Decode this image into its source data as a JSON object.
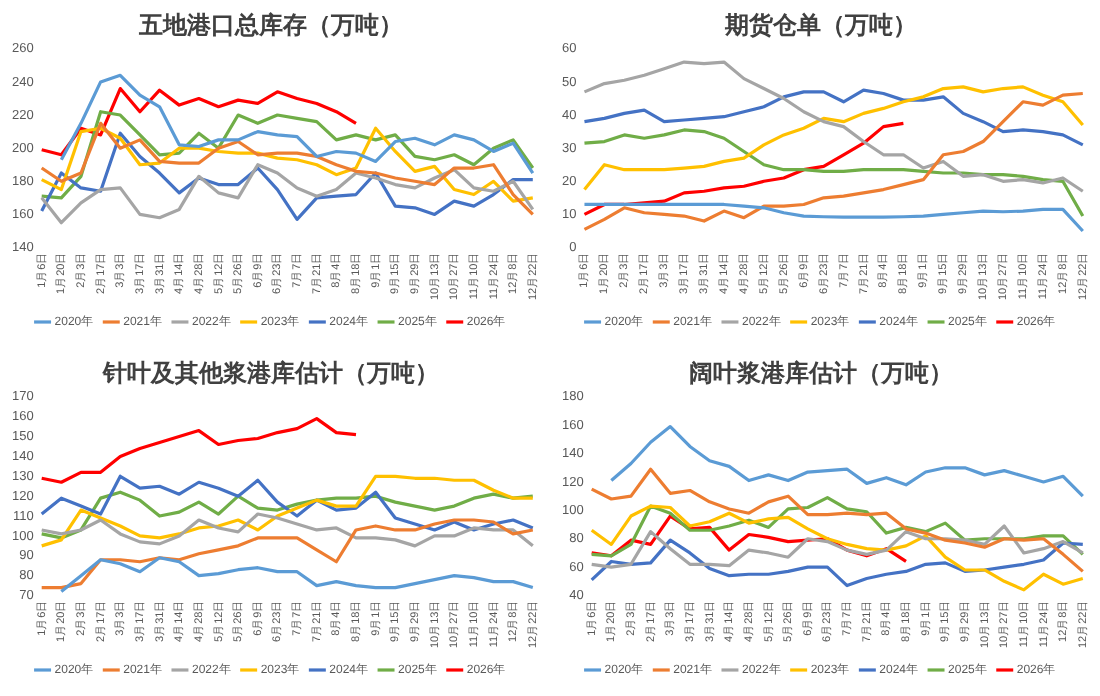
{
  "chart_data": [
    {
      "type": "line",
      "title": "五地港口总库存（万吨）",
      "marker": "none",
      "legend": "bottom",
      "ylim": [
        140,
        260
      ],
      "yticks": [
        140,
        160,
        180,
        200,
        220,
        240,
        260
      ],
      "categories": [
        "1月6日",
        "1月20日",
        "2月3日",
        "2月17日",
        "3月3日",
        "3月17日",
        "3月31日",
        "4月14日",
        "4月28日",
        "5月12日",
        "5月26日",
        "6月9日",
        "6月23日",
        "7月7日",
        "7月21日",
        "8月4日",
        "8月18日",
        "9月1日",
        "9月15日",
        "9月29日",
        "10月13日",
        "10月27日",
        "11月10日",
        "11月24日",
        "12月8日",
        "12月22日"
      ],
      "series": [
        {
          "name": "2020年",
          "color": "#5b9bd5",
          "values": [
            null,
            193,
            215,
            240,
            244,
            232,
            225,
            202,
            201,
            205,
            205,
            210,
            208,
            207,
            195,
            198,
            197,
            192,
            204,
            206,
            202,
            208,
            205,
            198,
            203,
            185
          ]
        },
        {
          "name": "2021年",
          "color": "#ed7d31",
          "values": [
            188,
            180,
            185,
            215,
            200,
            205,
            192,
            191,
            191,
            200,
            204,
            196,
            197,
            197,
            195,
            190,
            186,
            185,
            182,
            180,
            178,
            188,
            188,
            190,
            172,
            160
          ]
        },
        {
          "name": "2022年",
          "color": "#a5a5a5",
          "values": [
            170,
            155,
            167,
            175,
            176,
            160,
            158,
            163,
            183,
            173,
            170,
            190,
            185,
            176,
            171,
            175,
            185,
            182,
            178,
            176,
            182,
            187,
            176,
            174,
            180,
            163
          ]
        },
        {
          "name": "2023年",
          "color": "#ffc000",
          "values": [
            181,
            175,
            210,
            212,
            206,
            190,
            191,
            200,
            200,
            198,
            197,
            197,
            194,
            193,
            190,
            184,
            188,
            212,
            198,
            186,
            189,
            175,
            172,
            180,
            168,
            170
          ]
        },
        {
          "name": "2024年",
          "color": "#4472c4",
          "values": [
            162,
            185,
            176,
            174,
            209,
            195,
            185,
            173,
            182,
            178,
            178,
            188,
            175,
            157,
            170,
            171,
            172,
            185,
            165,
            164,
            160,
            168,
            165,
            172,
            181,
            181
          ]
        },
        {
          "name": "2025年",
          "color": "#70ad47",
          "values": [
            171,
            170,
            183,
            222,
            220,
            208,
            196,
            197,
            209,
            200,
            220,
            215,
            220,
            218,
            216,
            205,
            208,
            205,
            208,
            195,
            193,
            196,
            190,
            200,
            205,
            188
          ]
        },
        {
          "name": "2026年",
          "color": "#ff0000",
          "values": [
            199,
            196,
            212,
            208,
            236,
            222,
            235,
            226,
            230,
            225,
            229,
            227,
            234,
            230,
            227,
            222,
            215,
            null,
            null,
            null,
            null,
            null,
            null,
            null,
            null,
            null
          ]
        }
      ]
    },
    {
      "type": "line",
      "title": "期货仓单（万吨）",
      "marker": "none",
      "legend": "bottom",
      "ylim": [
        0,
        60
      ],
      "yticks": [
        0,
        10,
        20,
        30,
        40,
        50,
        60
      ],
      "categories": [
        "1月6日",
        "1月20日",
        "2月3日",
        "2月17日",
        "3月3日",
        "3月17日",
        "3月31日",
        "4月14日",
        "4月28日",
        "5月12日",
        "5月26日",
        "6月9日",
        "6月23日",
        "7月7日",
        "7月21日",
        "8月4日",
        "8月18日",
        "9月1日",
        "9月15日",
        "9月29日",
        "10月13日",
        "10月27日",
        "11月10日",
        "11月24日",
        "12月8日",
        "12月22日"
      ],
      "series": [
        {
          "name": "2020年",
          "color": "#5b9bd5",
          "values": [
            13,
            13,
            13,
            13,
            13,
            13,
            13,
            13,
            12.5,
            12,
            10.5,
            9.5,
            9.3,
            9.2,
            9.2,
            9.2,
            9.3,
            9.5,
            10,
            10.5,
            11,
            10.8,
            11,
            11.5,
            11.5,
            5
          ]
        },
        {
          "name": "2021年",
          "color": "#ed7d31",
          "values": [
            5.5,
            8.5,
            12,
            10.5,
            10,
            9.5,
            8,
            11,
            9,
            12.5,
            12.5,
            13,
            15,
            15.5,
            16.5,
            17.5,
            19,
            20.5,
            28,
            29,
            32,
            38,
            44,
            43,
            46,
            46.5
          ]
        },
        {
          "name": "2022年",
          "color": "#a5a5a5",
          "values": [
            47,
            49.5,
            50.5,
            52,
            54,
            56,
            55.5,
            56,
            51,
            48,
            45,
            41,
            38,
            36.5,
            32,
            28,
            28,
            24,
            26,
            21.5,
            22,
            20,
            20.5,
            19.5,
            21,
            17
          ]
        },
        {
          "name": "2023年",
          "color": "#ffc000",
          "values": [
            17.5,
            25,
            23.5,
            23.5,
            23.5,
            24,
            24.5,
            26,
            27,
            31,
            34,
            36,
            39,
            38,
            40.5,
            42,
            44,
            45.5,
            48,
            48.5,
            47,
            48,
            48.5,
            46,
            44,
            37
          ]
        },
        {
          "name": "2024年",
          "color": "#4472c4",
          "values": [
            38,
            39,
            40.5,
            41.5,
            38,
            38.5,
            39,
            39.5,
            41,
            42.5,
            45.5,
            47,
            47,
            44,
            47.5,
            46.5,
            44.5,
            44.5,
            45.5,
            40.5,
            38,
            35,
            35.5,
            35,
            34,
            31
          ]
        },
        {
          "name": "2025年",
          "color": "#70ad47",
          "values": [
            31.5,
            32,
            34,
            33,
            34,
            35.5,
            35,
            33,
            29,
            25,
            23.5,
            23.5,
            23,
            23,
            23.5,
            23.5,
            23.5,
            23,
            22.5,
            22.5,
            22,
            22,
            21.5,
            20.5,
            20,
            9.5
          ]
        },
        {
          "name": "2026年",
          "color": "#ff0000",
          "values": [
            10,
            13,
            13,
            13.5,
            14,
            16.5,
            17,
            18,
            18.5,
            20,
            21,
            23.5,
            24.5,
            28,
            31.5,
            36.5,
            37.5,
            null,
            null,
            null,
            null,
            null,
            null,
            null,
            null,
            null
          ]
        }
      ]
    },
    {
      "type": "line",
      "title": "针叶及其他浆港库估计（万吨）",
      "marker": "none",
      "legend": "bottom",
      "ylim": [
        70,
        170
      ],
      "yticks": [
        70,
        80,
        90,
        100,
        110,
        120,
        130,
        140,
        150,
        160,
        170
      ],
      "categories": [
        "1月6日",
        "1月20日",
        "2月3日",
        "2月17日",
        "3月3日",
        "3月17日",
        "3月31日",
        "4月14日",
        "4月28日",
        "5月12日",
        "5月26日",
        "6月9日",
        "6月23日",
        "7月7日",
        "7月21日",
        "8月4日",
        "8月18日",
        "9月1日",
        "9月15日",
        "9月29日",
        "10月13日",
        "10月27日",
        "11月10日",
        "11月24日",
        "12月8日",
        "12月22日"
      ],
      "series": [
        {
          "name": "2020年",
          "color": "#5b9bd5",
          "values": [
            null,
            72,
            80,
            88,
            86,
            82,
            89,
            87,
            80,
            81,
            83,
            84,
            82,
            82,
            75,
            77,
            75,
            74,
            74,
            76,
            78,
            80,
            79,
            77,
            77,
            74
          ]
        },
        {
          "name": "2021年",
          "color": "#ed7d31",
          "values": [
            74,
            74,
            76,
            88,
            88,
            87,
            89,
            88,
            91,
            93,
            95,
            99,
            99,
            99,
            93,
            87,
            103,
            105,
            103,
            103,
            106,
            108,
            108,
            107,
            101,
            103
          ]
        },
        {
          "name": "2022年",
          "color": "#a5a5a5",
          "values": [
            103,
            101,
            103,
            108,
            101,
            97,
            96,
            100,
            108,
            104,
            102,
            111,
            109,
            106,
            103,
            104,
            99,
            99,
            98,
            95,
            100,
            100,
            104,
            103,
            103,
            95
          ]
        },
        {
          "name": "2023年",
          "color": "#ffc000",
          "values": [
            95,
            98,
            113,
            109,
            105,
            100,
            99,
            101,
            104,
            105,
            108,
            103,
            110,
            114,
            118,
            115,
            115,
            130,
            130,
            129,
            129,
            128,
            128,
            123,
            119,
            119
          ]
        },
        {
          "name": "2024年",
          "color": "#4472c4",
          "values": [
            111,
            119,
            115,
            111,
            130,
            124,
            125,
            121,
            127,
            124,
            120,
            128,
            117,
            110,
            118,
            113,
            114,
            122,
            109,
            106,
            103,
            107,
            103,
            106,
            108,
            104
          ]
        },
        {
          "name": "2025年",
          "color": "#70ad47",
          "values": [
            101,
            99,
            103,
            119,
            122,
            118,
            110,
            112,
            117,
            111,
            120,
            114,
            113,
            116,
            118,
            119,
            119,
            120,
            117,
            115,
            113,
            115,
            119,
            121,
            119,
            120
          ]
        },
        {
          "name": "2026年",
          "color": "#ff0000",
          "values": [
            129,
            127,
            132,
            132,
            140,
            144,
            147,
            150,
            153,
            146,
            148,
            149,
            152,
            154,
            159,
            152,
            151,
            null,
            null,
            null,
            null,
            null,
            null,
            null,
            null,
            null
          ]
        }
      ]
    },
    {
      "type": "line",
      "title": "阔叶浆港库估计（万吨）",
      "marker": "none",
      "legend": "bottom",
      "ylim": [
        40,
        180
      ],
      "yticks": [
        40,
        60,
        80,
        100,
        120,
        140,
        160,
        180
      ],
      "categories": [
        "1月6日",
        "1月20日",
        "2月3日",
        "2月17日",
        "3月3日",
        "3月17日",
        "3月31日",
        "4月14日",
        "4月28日",
        "5月12日",
        "5月26日",
        "6月9日",
        "6月23日",
        "7月7日",
        "7月21日",
        "8月4日",
        "8月18日",
        "9月1日",
        "9月15日",
        "9月29日",
        "10月13日",
        "10月27日",
        "11月10日",
        "11月24日",
        "12月8日",
        "12月22日"
      ],
      "series": [
        {
          "name": "2020年",
          "color": "#5b9bd5",
          "values": [
            null,
            121,
            133,
            148,
            159,
            145,
            135,
            131,
            121,
            125,
            121,
            127,
            128,
            129,
            119,
            123,
            118,
            127,
            130,
            130,
            125,
            128,
            124,
            120,
            124,
            110
          ]
        },
        {
          "name": "2021年",
          "color": "#ed7d31",
          "values": [
            115,
            108,
            110,
            129,
            112,
            114,
            106,
            101,
            98,
            106,
            110,
            97,
            97,
            98,
            97,
            98,
            87,
            84,
            79,
            77,
            74,
            80,
            79,
            80,
            69,
            57
          ]
        },
        {
          "name": "2022年",
          "color": "#a5a5a5",
          "values": [
            62,
            60,
            62,
            85,
            73,
            62,
            62,
            61,
            72,
            70,
            67,
            80,
            78,
            72,
            69,
            72,
            85,
            80,
            80,
            79,
            76,
            89,
            70,
            73,
            78,
            70
          ]
        },
        {
          "name": "2023年",
          "color": "#ffc000",
          "values": [
            86,
            76,
            96,
            103,
            102,
            89,
            92,
            98,
            91,
            94,
            95,
            87,
            80,
            76,
            73,
            72,
            75,
            82,
            67,
            58,
            58,
            50,
            44,
            55,
            48,
            52
          ]
        },
        {
          "name": "2024年",
          "color": "#4472c4",
          "values": [
            51,
            64,
            62,
            63,
            79,
            70,
            59,
            54,
            55,
            55,
            57,
            60,
            60,
            47,
            52,
            55,
            57,
            62,
            63,
            57,
            58,
            60,
            62,
            65,
            77,
            76
          ]
        },
        {
          "name": "2025年",
          "color": "#70ad47",
          "values": [
            69,
            68,
            76,
            103,
            98,
            86,
            86,
            89,
            93,
            88,
            101,
            102,
            109,
            101,
            99,
            84,
            88,
            85,
            91,
            79,
            80,
            80,
            80,
            82,
            82,
            69
          ]
        },
        {
          "name": "2026年",
          "color": "#ff0000",
          "values": [
            70,
            68,
            79,
            76,
            96,
            87,
            88,
            72,
            83,
            81,
            78,
            79,
            80,
            72,
            68,
            73,
            64,
            null,
            null,
            null,
            null,
            null,
            null,
            null,
            null,
            null
          ]
        }
      ]
    }
  ]
}
